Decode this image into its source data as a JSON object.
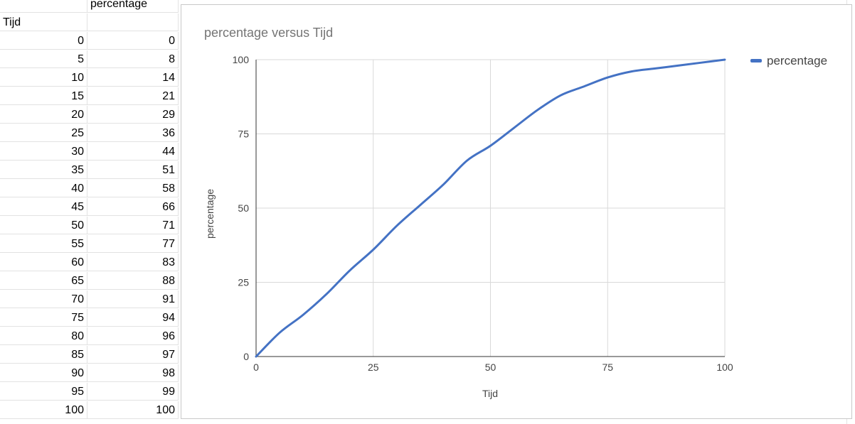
{
  "sheet": {
    "header_b": "percentage",
    "header_a": "Tijd",
    "rows": [
      {
        "tijd": "0",
        "percentage": "0"
      },
      {
        "tijd": "5",
        "percentage": "8"
      },
      {
        "tijd": "10",
        "percentage": "14"
      },
      {
        "tijd": "15",
        "percentage": "21"
      },
      {
        "tijd": "20",
        "percentage": "29"
      },
      {
        "tijd": "25",
        "percentage": "36"
      },
      {
        "tijd": "30",
        "percentage": "44"
      },
      {
        "tijd": "35",
        "percentage": "51"
      },
      {
        "tijd": "40",
        "percentage": "58"
      },
      {
        "tijd": "45",
        "percentage": "66"
      },
      {
        "tijd": "50",
        "percentage": "71"
      },
      {
        "tijd": "55",
        "percentage": "77"
      },
      {
        "tijd": "60",
        "percentage": "83"
      },
      {
        "tijd": "65",
        "percentage": "88"
      },
      {
        "tijd": "70",
        "percentage": "91"
      },
      {
        "tijd": "75",
        "percentage": "94"
      },
      {
        "tijd": "80",
        "percentage": "96"
      },
      {
        "tijd": "85",
        "percentage": "97"
      },
      {
        "tijd": "90",
        "percentage": "98"
      },
      {
        "tijd": "95",
        "percentage": "99"
      },
      {
        "tijd": "100",
        "percentage": "100"
      }
    ]
  },
  "chart_data": {
    "type": "line",
    "title": "percentage versus Tijd",
    "xlabel": "Tijd",
    "ylabel": "percentage",
    "x": [
      0,
      5,
      10,
      15,
      20,
      25,
      30,
      35,
      40,
      45,
      50,
      55,
      60,
      65,
      70,
      75,
      80,
      85,
      90,
      95,
      100
    ],
    "series": [
      {
        "name": "percentage",
        "values": [
          0,
          8,
          14,
          21,
          29,
          36,
          44,
          51,
          58,
          66,
          71,
          77,
          83,
          88,
          91,
          94,
          96,
          97,
          98,
          99,
          100
        ],
        "color": "#4472c4"
      }
    ],
    "xlim": [
      0,
      100
    ],
    "ylim": [
      0,
      100
    ],
    "xticks": [
      "0",
      "25",
      "50",
      "75",
      "100"
    ],
    "yticks": [
      "0",
      "25",
      "50",
      "75",
      "100"
    ],
    "grid": true,
    "legend_position": "right"
  }
}
